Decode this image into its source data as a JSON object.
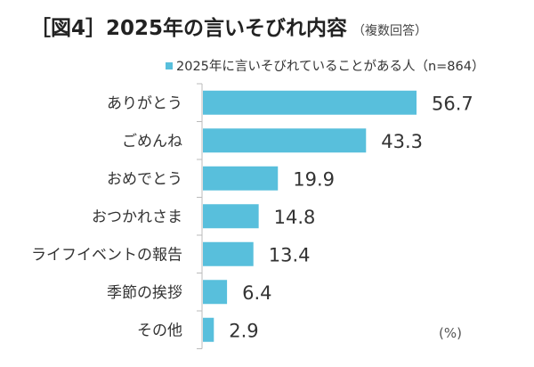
{
  "title": "［図4］2025年の言いそびれ内容",
  "subtitle": "（複数回答）",
  "chart_data": {
    "type": "bar",
    "orientation": "horizontal",
    "categories": [
      "ありがとう",
      "ごめんね",
      "おめでとう",
      "おつかれさま",
      "ライフイベントの報告",
      "季節の挨拶",
      "その他"
    ],
    "series": [
      {
        "name": "2025年に言いそびれていることがある人（n=864）",
        "values": [
          56.7,
          43.3,
          19.9,
          14.8,
          13.4,
          6.4,
          2.9
        ],
        "color": "#58bfdc"
      }
    ],
    "unit_label": "(%)",
    "xlim": [
      0,
      60
    ],
    "grid": false,
    "legend_position": "top-right"
  }
}
